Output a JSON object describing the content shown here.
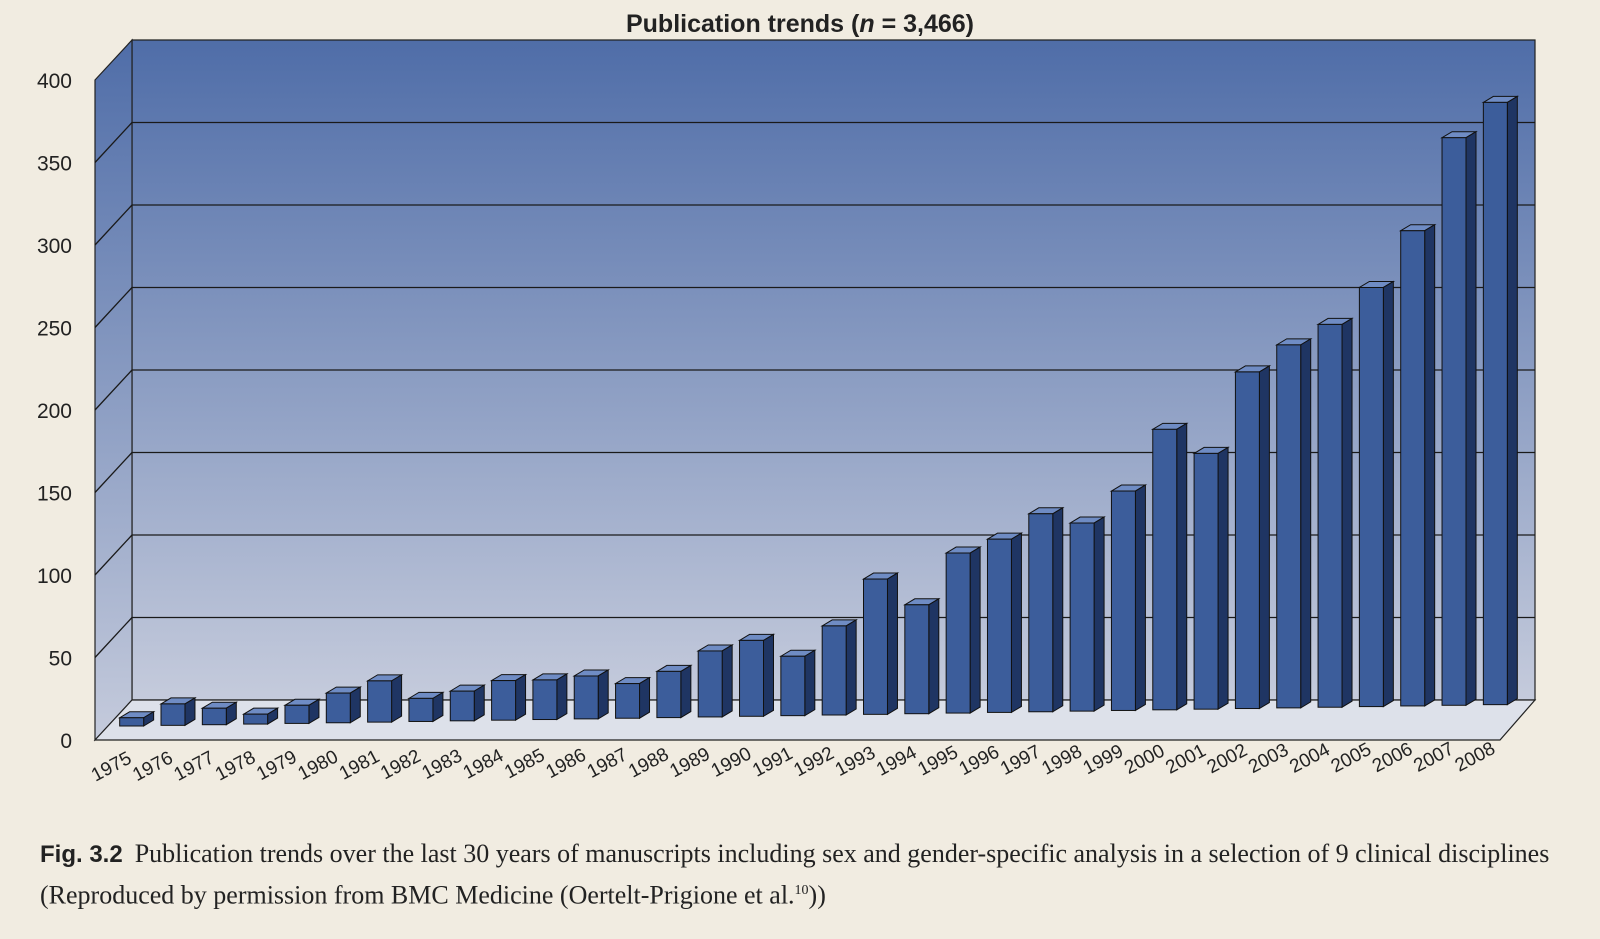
{
  "chart_data": {
    "type": "bar",
    "title_prefix": "Publication trends (",
    "title_n": "n",
    "title_suffix": " = 3,466)",
    "xlabel": "",
    "ylabel": "",
    "ylim": [
      0,
      400
    ],
    "yticks": [
      "0",
      "50",
      "100",
      "150",
      "200",
      "250",
      "300",
      "350",
      "400"
    ],
    "grid": true,
    "categories": [
      "1975",
      "1976",
      "1977",
      "1978",
      "1979",
      "1980",
      "1981",
      "1982",
      "1983",
      "1984",
      "1985",
      "1986",
      "1987",
      "1988",
      "1989",
      "1990",
      "1991",
      "1992",
      "1993",
      "1994",
      "1995",
      "1996",
      "1997",
      "1998",
      "1999",
      "2000",
      "2001",
      "2002",
      "2003",
      "2004",
      "2005",
      "2006",
      "2007",
      "2008"
    ],
    "values": [
      5,
      13,
      10,
      6,
      11,
      18,
      25,
      14,
      18,
      24,
      24,
      26,
      21,
      28,
      40,
      46,
      36,
      54,
      82,
      66,
      97,
      105,
      120,
      114,
      133,
      170,
      155,
      204,
      220,
      232,
      254,
      288,
      344,
      365
    ],
    "colors": {
      "bar_front": "#3c5d9b",
      "bar_side": "#1f3563",
      "bar_top": "#6f8cc4",
      "back_wall_top": "#4f6da8",
      "back_wall_bottom": "#c5cbdc",
      "floor": "#dde1ea"
    }
  },
  "caption": {
    "fig_label": "Fig. 3.2",
    "text": "Publication trends over the last 30 years of manuscripts including sex and gender-specific analysis in a selection of 9 clinical disciplines (Reproduced by permission from BMC Medicine (Oertelt-Prigione et al.",
    "ref": "10",
    "text_end": "))"
  }
}
